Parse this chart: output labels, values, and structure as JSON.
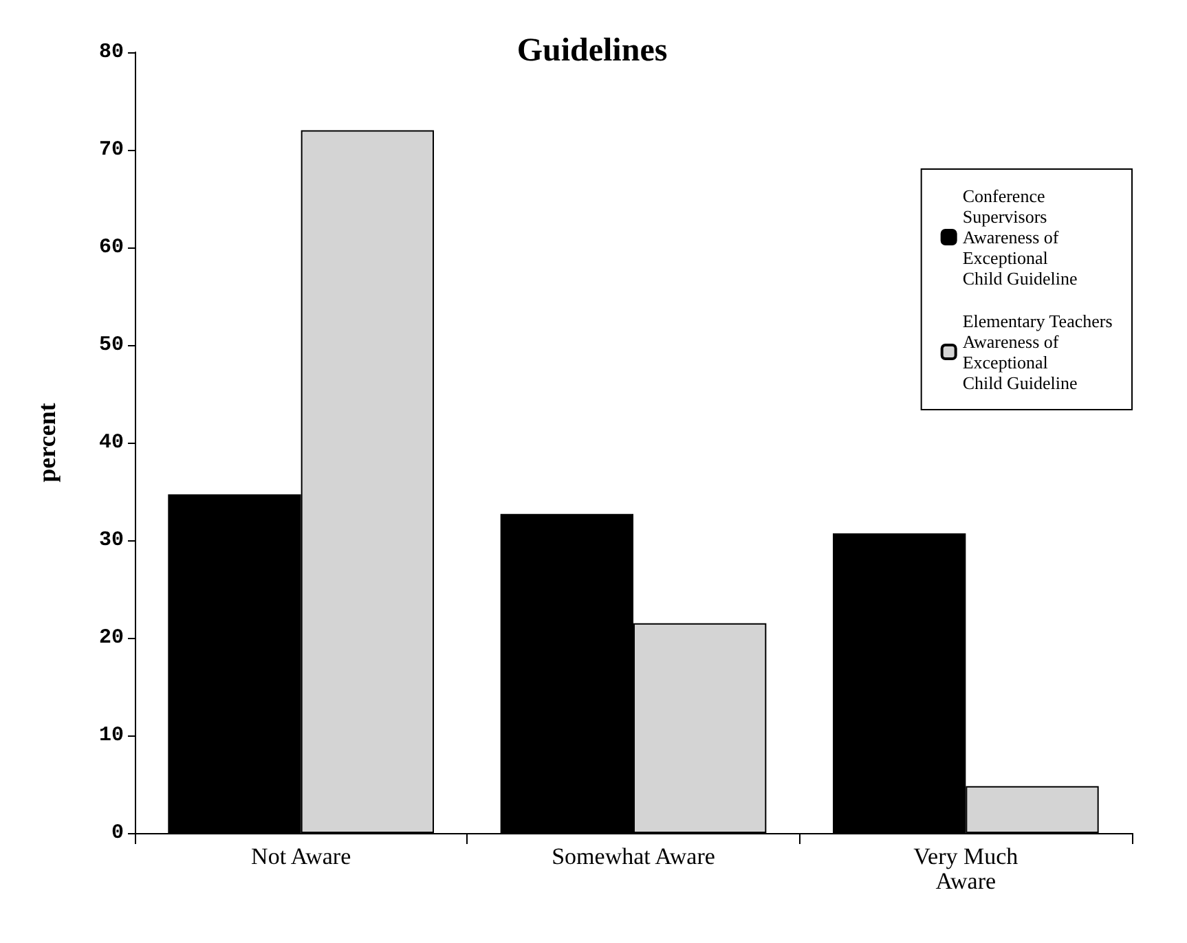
{
  "chart_data": {
    "type": "bar",
    "title": "Guidelines",
    "ylabel": "percent",
    "categories": [
      "Not Aware",
      "Somewhat Aware",
      "Very Much\nAware"
    ],
    "series": [
      {
        "name": "Conference\nSupervisors\nAwareness of\nExceptional\nChild Guideline",
        "color": "#000000",
        "values": [
          34.7,
          32.7,
          30.7
        ]
      },
      {
        "name": "Elementary Teachers\nAwareness of\nExceptional\nChild Guideline",
        "color": "#d4d4d4",
        "values": [
          72,
          21.5,
          4.8
        ]
      }
    ],
    "ylim": [
      0,
      80
    ],
    "yticks": [
      0,
      10,
      20,
      30,
      40,
      50,
      60,
      70,
      80
    ],
    "grid": false,
    "legend": "top right"
  }
}
